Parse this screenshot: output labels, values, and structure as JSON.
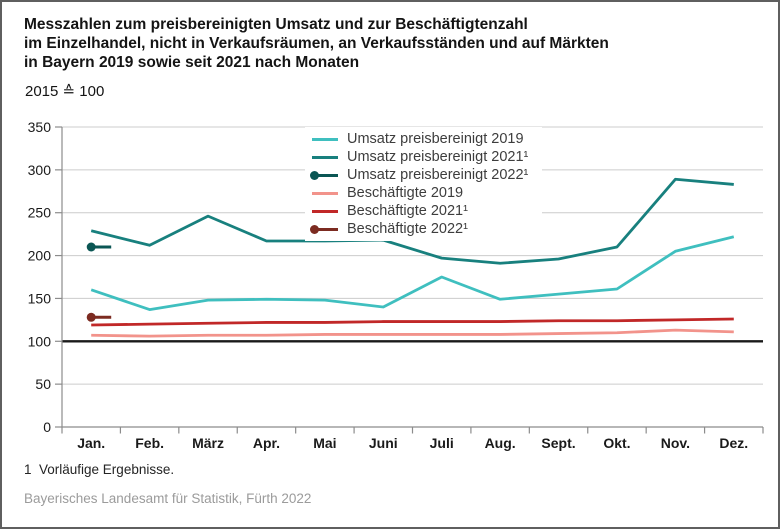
{
  "header": {
    "title_line1": "Messzahlen zum preisbereinigten Umsatz und zur Beschäftigtenzahl",
    "title_line2": "im Einzelhandel, nicht in Verkaufsräumen, an Verkaufsständen und auf Märkten",
    "title_line3": "in Bayern 2019 sowie seit 2021 nach Monaten",
    "subtitle": "2015 ≙ 100"
  },
  "chart_data": {
    "type": "line",
    "x_categories": [
      "Jan.",
      "Feb.",
      "März",
      "Apr.",
      "Mai",
      "Juni",
      "Juli",
      "Aug.",
      "Sept.",
      "Okt.",
      "Nov.",
      "Dez."
    ],
    "y_ticks": [
      0,
      50,
      100,
      150,
      200,
      250,
      300,
      350
    ],
    "ylim": [
      0,
      350
    ],
    "baseline_value": 100,
    "grid": true,
    "legend_position": "inside-top-center",
    "series": [
      {
        "name": "Umsatz preisbereinigt 2019",
        "color": "#3FBFBF",
        "marker": "none",
        "values": [
          160,
          137,
          148,
          149,
          148,
          140,
          175,
          149,
          155,
          161,
          205,
          222
        ]
      },
      {
        "name": "Umsatz preisbereinigt 2021¹",
        "color": "#18807E",
        "marker": "none",
        "values": [
          229,
          212,
          246,
          217,
          217,
          218,
          197,
          191,
          196,
          210,
          289,
          283
        ]
      },
      {
        "name": "Umsatz preisbereinigt 2022¹",
        "color": "#0B5654",
        "marker": "dot",
        "values": [
          210,
          null,
          null,
          null,
          null,
          null,
          null,
          null,
          null,
          null,
          null,
          null
        ]
      },
      {
        "name": "Beschäftigte 2019",
        "color": "#F2938B",
        "marker": "none",
        "values": [
          107,
          106,
          107,
          107,
          108,
          108,
          108,
          108,
          109,
          110,
          113,
          111
        ]
      },
      {
        "name": "Beschäftigte 2021¹",
        "color": "#C12828",
        "marker": "none",
        "values": [
          119,
          120,
          121,
          122,
          122,
          123,
          123,
          123,
          124,
          124,
          125,
          126
        ]
      },
      {
        "name": "Beschäftigte 2022¹",
        "color": "#7C2B21",
        "marker": "dot",
        "values": [
          128,
          null,
          null,
          null,
          null,
          null,
          null,
          null,
          null,
          null,
          null,
          null
        ]
      }
    ]
  },
  "footer": {
    "footnote": "1  Vorläufige Ergebnisse.",
    "source": "Bayerisches Landesamt für Statistik, Fürth 2022"
  },
  "colors": {
    "grid": "#CCCCCC",
    "axis": "#8C8C8C",
    "baseline": "#1A1A1A",
    "title_text": "#141414",
    "legend_text": "#3D3D3D",
    "source_text": "#9B9B9B"
  }
}
